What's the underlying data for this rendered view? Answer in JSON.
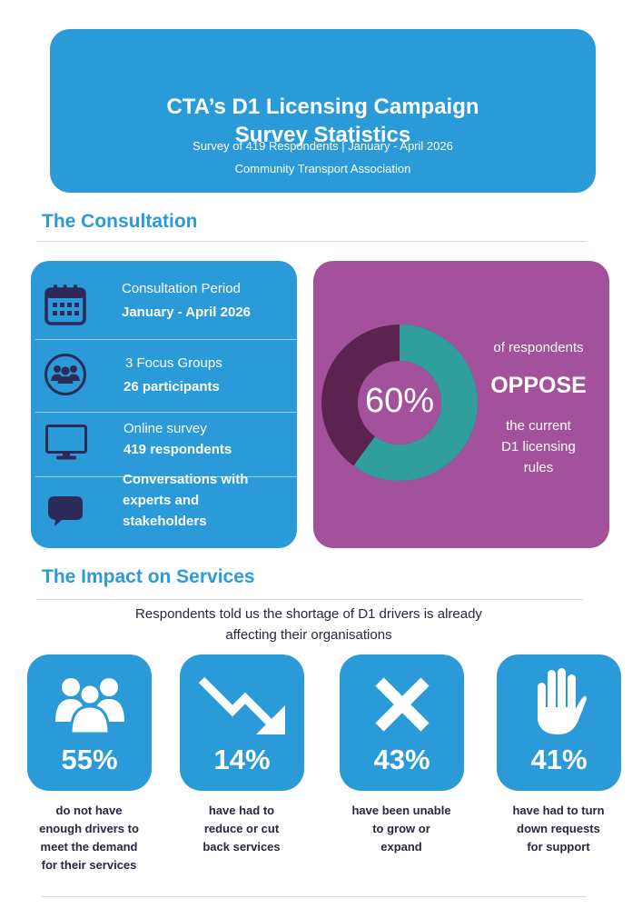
{
  "header": {
    "title_line1": "CTA’s D1 Licensing Campaign",
    "title_line2": "Survey Statistics",
    "subtitle": "Survey of 419 Respondents | January - April 2026",
    "organisation": "Community Transport Association"
  },
  "consultation": {
    "heading": "The Consultation",
    "items": [
      {
        "icon": "calendar-icon",
        "line1": "Consultation Period",
        "line2": "January - April 2026"
      },
      {
        "icon": "people-icon",
        "line1": "3 Focus Groups",
        "line2": "26 participants"
      },
      {
        "icon": "monitor-icon",
        "line1": "Online survey",
        "line2": "419 respondents"
      },
      {
        "icon": "speech-bubble-icon",
        "line1": "Conversations with",
        "line2": "experts and",
        "line3": "stakeholders"
      }
    ]
  },
  "oppose_stat": {
    "percent_label": "60%",
    "percent_value": 60,
    "line1": "of respondents",
    "emphasis": "OPPOSE",
    "rest_line1": "the current",
    "rest_line2": "D1 licensing",
    "rest_line3": "rules",
    "colors": {
      "ring_fill": "#2f9e9d",
      "ring_track": "#5b2450",
      "panel": "#a3519a"
    }
  },
  "impact": {
    "heading": "The Impact on Services",
    "intro_line1": "Respondents told us the shortage of D1 drivers is already",
    "intro_line2": "affecting their organisations",
    "cards": [
      {
        "icon": "group-icon",
        "percent": "55%",
        "caption": [
          "do not have",
          "enough drivers to",
          "meet the demand",
          "for their services"
        ]
      },
      {
        "icon": "trend-down-icon",
        "percent": "14%",
        "caption": [
          "have had to",
          "reduce or cut",
          "back services"
        ]
      },
      {
        "icon": "cross-icon",
        "percent": "43%",
        "caption": [
          "have been unable",
          "to grow or",
          "expand"
        ]
      },
      {
        "icon": "hand-stop-icon",
        "percent": "41%",
        "caption": [
          "have had to turn",
          "down requests",
          "for support"
        ]
      }
    ]
  },
  "colors": {
    "brand_blue": "#2a9ad9",
    "dark_navy": "#2d2a5a",
    "text": "#2b2540"
  }
}
